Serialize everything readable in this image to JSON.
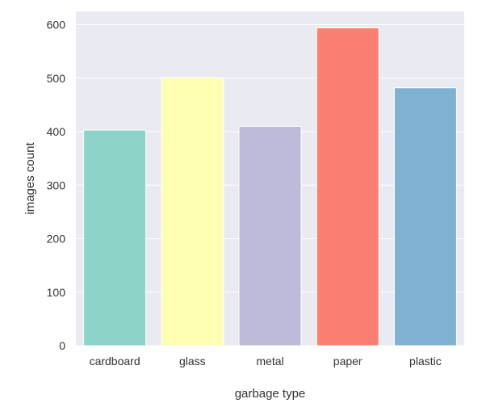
{
  "chart_data": {
    "type": "bar",
    "categories": [
      "cardboard",
      "glass",
      "metal",
      "paper",
      "plastic"
    ],
    "values": [
      403,
      501,
      410,
      594,
      482
    ],
    "xlabel": "garbage type",
    "ylabel": "images count",
    "ylim": [
      0,
      625
    ],
    "yticks": [
      0,
      100,
      200,
      300,
      400,
      500,
      600
    ],
    "grid": true,
    "background": "#eaeaf2",
    "colors": [
      "#8dd3c7",
      "#ffffb3",
      "#bebada",
      "#fb8072",
      "#80b1d3"
    ]
  }
}
